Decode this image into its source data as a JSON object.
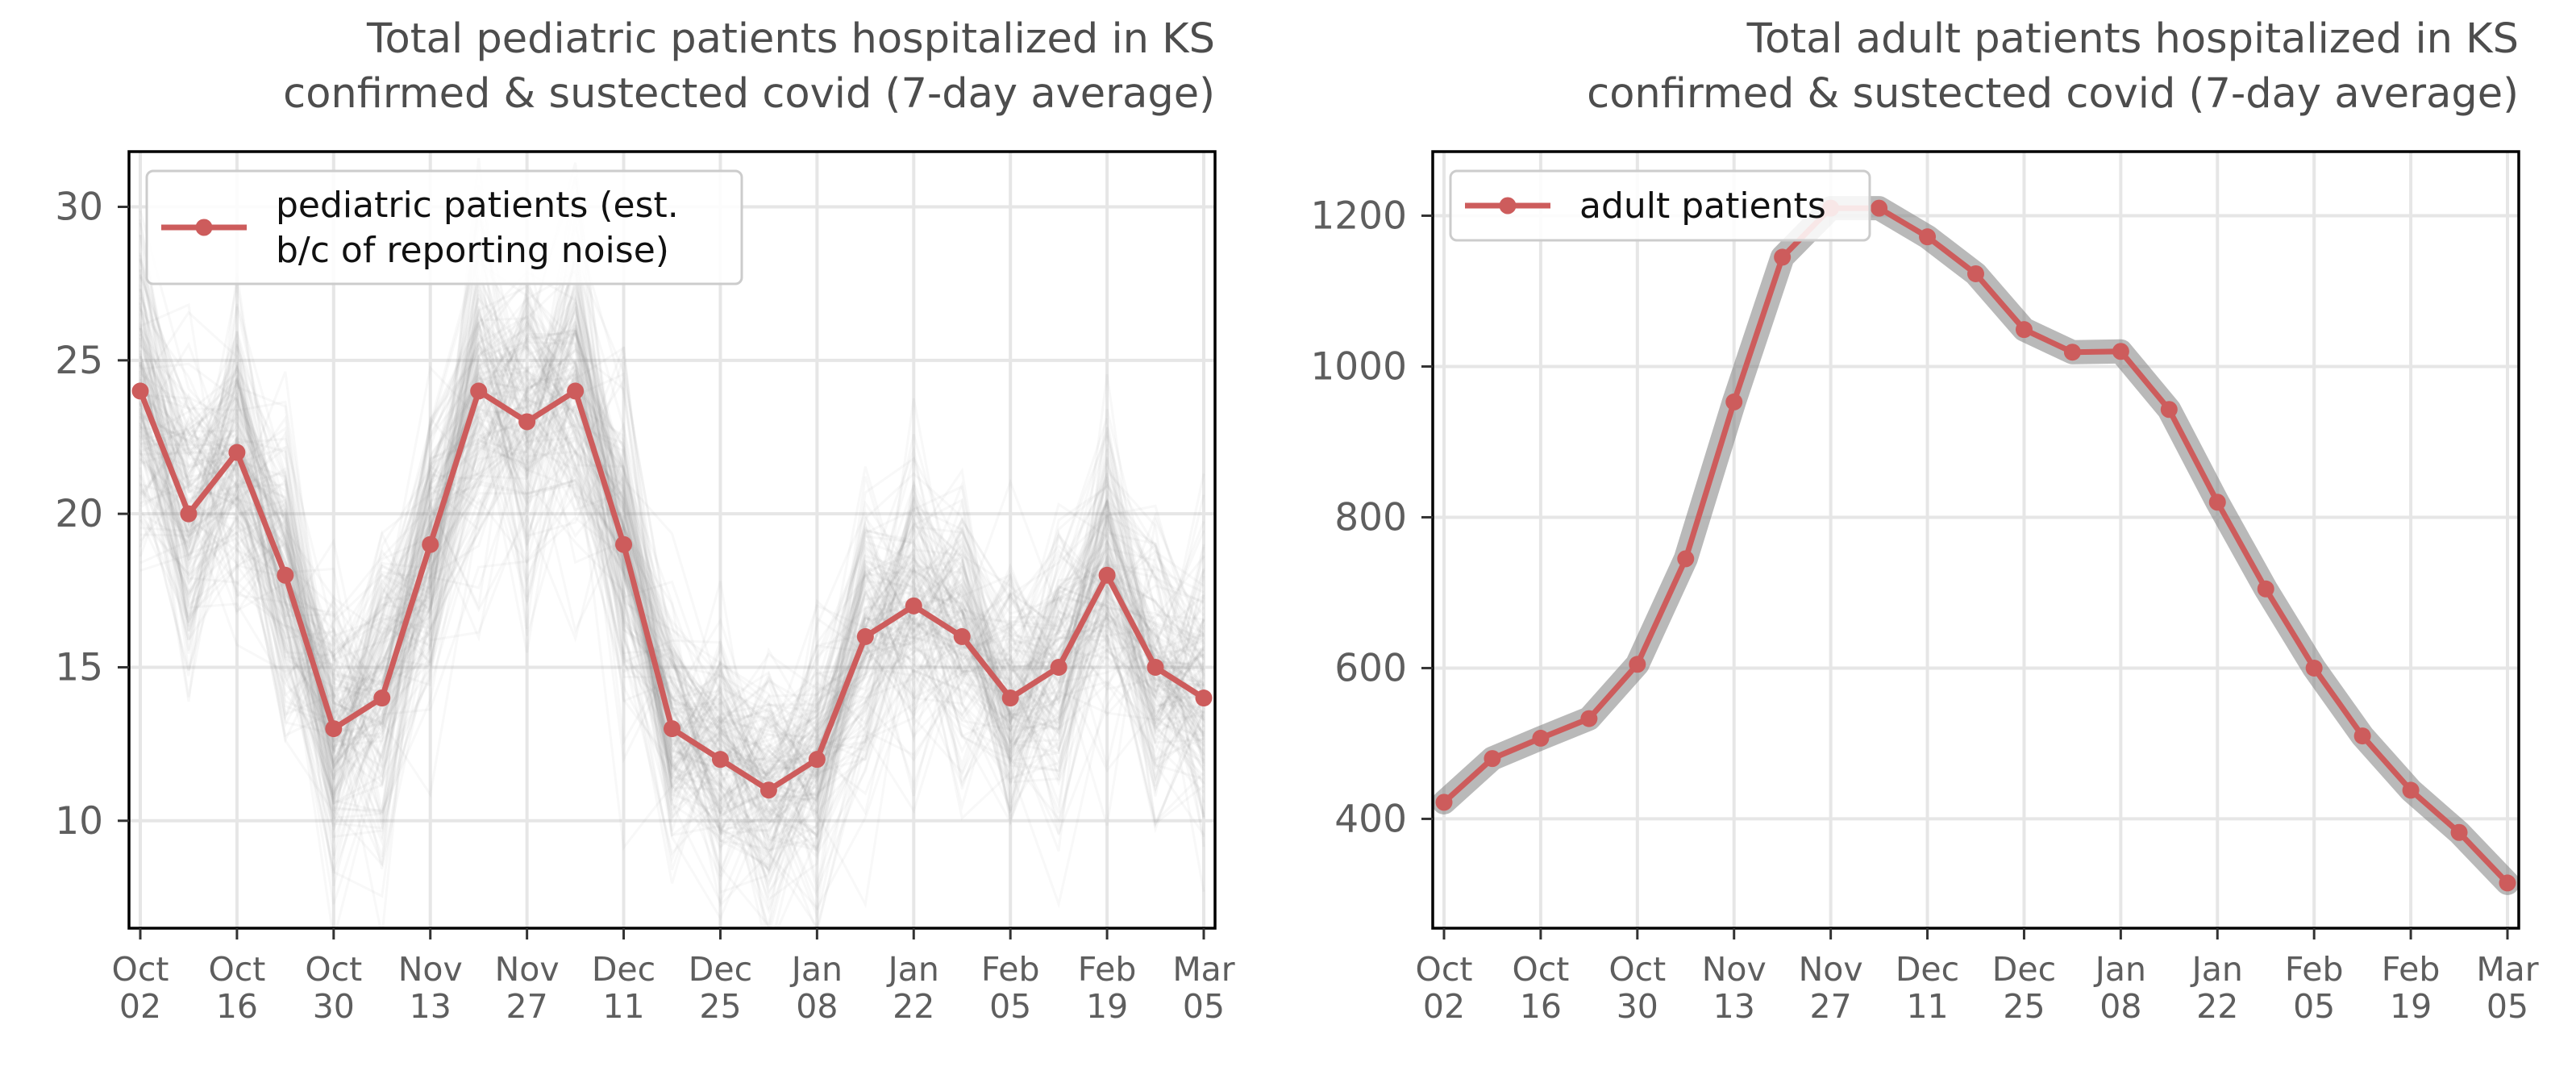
{
  "chart_data": [
    {
      "type": "line",
      "title": [
        "Total pediatric patients hospitalized in KS",
        "confirmed & sustected covid (7-day average)"
      ],
      "xlabel": "",
      "ylabel": "",
      "x_tick_labels": [
        [
          "Oct",
          "02"
        ],
        [
          "Oct",
          "16"
        ],
        [
          "Oct",
          "30"
        ],
        [
          "Nov",
          "13"
        ],
        [
          "Nov",
          "27"
        ],
        [
          "Dec",
          "11"
        ],
        [
          "Dec",
          "25"
        ],
        [
          "Jan",
          "08"
        ],
        [
          "Jan",
          "22"
        ],
        [
          "Feb",
          "05"
        ],
        [
          "Feb",
          "19"
        ],
        [
          "Mar",
          "05"
        ]
      ],
      "y_ticks": [
        10,
        15,
        20,
        25,
        30
      ],
      "ylim": [
        6.5,
        31.8
      ],
      "grid": true,
      "legend_position": "top-left",
      "series": [
        {
          "name": [
            "pediatric patients (est.",
            "b/c of reporting noise)"
          ],
          "color": "#cd5c5c",
          "x": [
            "2022-10-02",
            "2022-10-09",
            "2022-10-16",
            "2022-10-23",
            "2022-10-30",
            "2022-11-06",
            "2022-11-13",
            "2022-11-20",
            "2022-11-27",
            "2022-12-04",
            "2022-12-11",
            "2022-12-18",
            "2022-12-25",
            "2023-01-01",
            "2023-01-08",
            "2023-01-15",
            "2023-01-22",
            "2023-01-29",
            "2023-02-05",
            "2023-02-12",
            "2023-02-19",
            "2023-02-26",
            "2023-03-05"
          ],
          "values": [
            24,
            20,
            22,
            18,
            13,
            14,
            19,
            24,
            23,
            24,
            19,
            13,
            12,
            11,
            12,
            16,
            17,
            16,
            14,
            15,
            18,
            15,
            14
          ]
        }
      ],
      "uncertainty_color": "#808080"
    },
    {
      "type": "line",
      "title": [
        "Total adult patients hospitalized in KS",
        "confirmed & sustected covid (7-day average)"
      ],
      "xlabel": "",
      "ylabel": "",
      "x_tick_labels": [
        [
          "Oct",
          "02"
        ],
        [
          "Oct",
          "16"
        ],
        [
          "Oct",
          "30"
        ],
        [
          "Nov",
          "13"
        ],
        [
          "Nov",
          "27"
        ],
        [
          "Dec",
          "11"
        ],
        [
          "Dec",
          "25"
        ],
        [
          "Jan",
          "08"
        ],
        [
          "Jan",
          "22"
        ],
        [
          "Feb",
          "05"
        ],
        [
          "Feb",
          "19"
        ],
        [
          "Mar",
          "05"
        ]
      ],
      "y_ticks": [
        400,
        600,
        800,
        1000,
        1200
      ],
      "ylim": [
        255,
        1285
      ],
      "grid": true,
      "legend_position": "top-left",
      "series": [
        {
          "name": "adult patients",
          "color": "#cd5c5c",
          "x": [
            "2022-10-02",
            "2022-10-09",
            "2022-10-16",
            "2022-10-23",
            "2022-10-30",
            "2022-11-06",
            "2022-11-13",
            "2022-11-20",
            "2022-11-27",
            "2022-12-04",
            "2022-12-11",
            "2022-12-18",
            "2022-12-25",
            "2023-01-01",
            "2023-01-08",
            "2023-01-15",
            "2023-01-22",
            "2023-01-29",
            "2023-02-05",
            "2023-02-12",
            "2023-02-19",
            "2023-02-26",
            "2023-03-05"
          ],
          "values": [
            422,
            480,
            507,
            533,
            605,
            745,
            953,
            1145,
            1210,
            1210,
            1172,
            1123,
            1049,
            1019,
            1020,
            943,
            820,
            705,
            600,
            510,
            438,
            382,
            315
          ]
        }
      ],
      "uncertainty_color": "#808080"
    }
  ]
}
